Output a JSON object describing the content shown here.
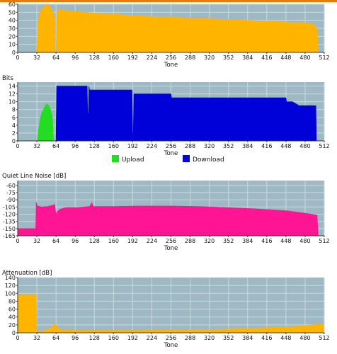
{
  "header_bar_color": "#e87b10",
  "colors": {
    "plot_bg": "#9eb9c3",
    "grid": "#c9d9df",
    "snr": "#ffb400",
    "upload": "#22dd22",
    "download": "#0000d8",
    "qln": "#ff1493",
    "atten": "#ffb400"
  },
  "chart_data": [
    {
      "type": "area",
      "title": "",
      "xlabel": "Tone",
      "ylabel": "",
      "xlim": [
        0,
        512
      ],
      "ylim": [
        0,
        60
      ],
      "y_ticks": [
        0,
        10,
        20,
        30,
        40,
        50,
        60
      ],
      "x_ticks": [
        0,
        32,
        64,
        96,
        128,
        160,
        192,
        224,
        256,
        288,
        320,
        352,
        384,
        416,
        448,
        480,
        512
      ],
      "grid": true,
      "series": [
        {
          "color": "#ffb400",
          "x": [
            32,
            34,
            38,
            44,
            50,
            54,
            58,
            61,
            62,
            64,
            66,
            70,
            100,
            128,
            160,
            192,
            224,
            256,
            288,
            320,
            352,
            384,
            416,
            448,
            480,
            495,
            500,
            502
          ],
          "y": [
            0,
            38,
            52,
            57,
            60,
            57,
            52,
            45,
            0,
            0,
            52,
            53,
            51,
            49,
            48,
            46,
            45,
            44,
            43,
            42,
            41,
            40,
            39,
            38,
            37,
            35,
            30,
            0
          ]
        }
      ]
    },
    {
      "type": "area",
      "title": "Bits",
      "xlabel": "Tone",
      "ylabel": "",
      "xlim": [
        0,
        512
      ],
      "ylim": [
        0,
        15
      ],
      "y_ticks": [
        0,
        2,
        4,
        6,
        8,
        10,
        12,
        14
      ],
      "x_ticks": [
        0,
        32,
        64,
        96,
        128,
        160,
        192,
        224,
        256,
        288,
        320,
        352,
        384,
        416,
        448,
        480,
        512
      ],
      "grid": true,
      "legend": {
        "position": "bottom",
        "items": [
          {
            "label": "Upload",
            "color": "#22dd22"
          },
          {
            "label": "Download",
            "color": "#0000d8"
          }
        ]
      },
      "series": [
        {
          "name": "Upload",
          "color": "#22dd22",
          "x": [
            33,
            35,
            38,
            40,
            43,
            46,
            49,
            52,
            55,
            58,
            60
          ],
          "y": [
            0,
            3,
            6,
            7,
            8,
            9,
            9.5,
            9,
            8,
            6,
            0
          ]
        },
        {
          "name": "Download",
          "color": "#0000d8",
          "x": [
            64,
            65,
            100,
            116,
            117,
            118,
            119,
            120,
            128,
            191,
            192,
            193,
            194,
            256,
            257,
            320,
            384,
            448,
            449,
            458,
            459,
            470,
            480,
            490,
            498,
            499
          ],
          "y": [
            0,
            14,
            14,
            14,
            7,
            7,
            14,
            13,
            13,
            13,
            2,
            2,
            12,
            12,
            11,
            11,
            11,
            11,
            10,
            10,
            10,
            9,
            9,
            9,
            9,
            0
          ]
        }
      ]
    },
    {
      "type": "area",
      "title": "Quiet Line Noise [dB]",
      "xlabel": "Tone",
      "ylabel": "",
      "xlim": [
        0,
        512
      ],
      "ylim": [
        -165,
        -50
      ],
      "y_ticks": [
        -60,
        -75,
        -90,
        -105,
        -120,
        -135,
        -150,
        -165
      ],
      "x_ticks": [
        0,
        32,
        64,
        96,
        128,
        160,
        192,
        224,
        256,
        288,
        320,
        352,
        384,
        416,
        448,
        480,
        512
      ],
      "grid": true,
      "baseline": -165,
      "series": [
        {
          "color": "#ff1493",
          "x": [
            0,
            2,
            30,
            31,
            33,
            40,
            50,
            60,
            62,
            64,
            66,
            70,
            80,
            100,
            120,
            124,
            126,
            128,
            160,
            200,
            256,
            300,
            350,
            400,
            450,
            480,
            500,
            502
          ],
          "y": [
            -150,
            -150,
            -150,
            -95,
            -103,
            -105,
            -104,
            -101,
            -99,
            -122,
            -115,
            -110,
            -106,
            -106,
            -104,
            -96,
            -104,
            -104,
            -104,
            -103,
            -103,
            -104,
            -106,
            -109,
            -113,
            -118,
            -122,
            -165
          ]
        }
      ]
    },
    {
      "type": "area",
      "title": "Attenuation [dB]",
      "xlabel": "Tone",
      "ylabel": "",
      "xlim": [
        0,
        512
      ],
      "ylim": [
        0,
        140
      ],
      "y_ticks": [
        0,
        20,
        40,
        60,
        80,
        100,
        120,
        140
      ],
      "x_ticks": [
        0,
        32,
        64,
        96,
        128,
        160,
        192,
        224,
        256,
        288,
        320,
        352,
        384,
        416,
        448,
        480,
        512
      ],
      "grid": true,
      "series": [
        {
          "color": "#ffb400",
          "x": [
            0,
            1,
            31,
            32,
            33,
            45,
            55,
            62,
            64,
            66,
            70,
            80,
            100,
            140,
            200,
            256,
            320,
            384,
            448,
            480,
            500,
            510,
            511
          ],
          "y": [
            0,
            96,
            96,
            0,
            2,
            6,
            12,
            22,
            20,
            14,
            10,
            7,
            6,
            6,
            6,
            7,
            8,
            11,
            15,
            18,
            21,
            22,
            0
          ]
        }
      ]
    }
  ]
}
